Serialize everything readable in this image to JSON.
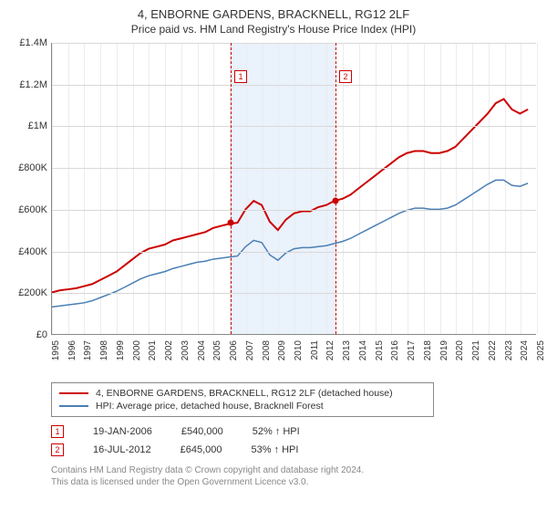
{
  "title": "4, ENBORNE GARDENS, BRACKNELL, RG12 2LF",
  "subtitle": "Price paid vs. HM Land Registry's House Price Index (HPI)",
  "chart": {
    "type": "line",
    "background_color": "#ffffff",
    "grid_color": "#d8d8d8",
    "grid_v_color": "#ececec",
    "shaded_color": "#eaf2fb",
    "ylim": [
      0,
      1400000
    ],
    "ytick_step": 200000,
    "y_ticks": [
      "£0",
      "£200K",
      "£400K",
      "£600K",
      "£800K",
      "£1M",
      "£1.2M",
      "£1.4M"
    ],
    "x_years": [
      1995,
      1996,
      1997,
      1998,
      1999,
      2000,
      2001,
      2002,
      2003,
      2004,
      2005,
      2006,
      2007,
      2008,
      2009,
      2010,
      2011,
      2012,
      2013,
      2014,
      2015,
      2016,
      2017,
      2018,
      2019,
      2020,
      2021,
      2022,
      2023,
      2024,
      2025
    ],
    "xlim": [
      1995,
      2025
    ],
    "series": [
      {
        "name": "price_paid",
        "color": "#cc0000",
        "width": 2,
        "points": [
          [
            1995,
            200000
          ],
          [
            1995.5,
            210000
          ],
          [
            1996,
            215000
          ],
          [
            1996.5,
            220000
          ],
          [
            1997,
            230000
          ],
          [
            1997.5,
            240000
          ],
          [
            1998,
            260000
          ],
          [
            1998.5,
            280000
          ],
          [
            1999,
            300000
          ],
          [
            1999.5,
            330000
          ],
          [
            2000,
            360000
          ],
          [
            2000.5,
            390000
          ],
          [
            2001,
            410000
          ],
          [
            2001.5,
            420000
          ],
          [
            2002,
            430000
          ],
          [
            2002.5,
            450000
          ],
          [
            2003,
            460000
          ],
          [
            2003.5,
            470000
          ],
          [
            2004,
            480000
          ],
          [
            2004.5,
            490000
          ],
          [
            2005,
            510000
          ],
          [
            2005.5,
            520000
          ],
          [
            2006,
            530000
          ],
          [
            2006.5,
            535000
          ],
          [
            2007,
            600000
          ],
          [
            2007.5,
            640000
          ],
          [
            2008,
            620000
          ],
          [
            2008.5,
            540000
          ],
          [
            2009,
            500000
          ],
          [
            2009.5,
            550000
          ],
          [
            2010,
            580000
          ],
          [
            2010.5,
            590000
          ],
          [
            2011,
            590000
          ],
          [
            2011.5,
            610000
          ],
          [
            2012,
            620000
          ],
          [
            2012.5,
            640000
          ],
          [
            2013,
            650000
          ],
          [
            2013.5,
            670000
          ],
          [
            2014,
            700000
          ],
          [
            2014.5,
            730000
          ],
          [
            2015,
            760000
          ],
          [
            2015.5,
            790000
          ],
          [
            2016,
            820000
          ],
          [
            2016.5,
            850000
          ],
          [
            2017,
            870000
          ],
          [
            2017.5,
            880000
          ],
          [
            2018,
            880000
          ],
          [
            2018.5,
            870000
          ],
          [
            2019,
            870000
          ],
          [
            2019.5,
            880000
          ],
          [
            2020,
            900000
          ],
          [
            2020.5,
            940000
          ],
          [
            2021,
            980000
          ],
          [
            2021.5,
            1020000
          ],
          [
            2022,
            1060000
          ],
          [
            2022.5,
            1110000
          ],
          [
            2023,
            1130000
          ],
          [
            2023.5,
            1080000
          ],
          [
            2024,
            1060000
          ],
          [
            2024.5,
            1080000
          ]
        ]
      },
      {
        "name": "hpi",
        "color": "#4a7fb5",
        "width": 1.5,
        "points": [
          [
            1995,
            130000
          ],
          [
            1995.5,
            135000
          ],
          [
            1996,
            140000
          ],
          [
            1996.5,
            145000
          ],
          [
            1997,
            150000
          ],
          [
            1997.5,
            160000
          ],
          [
            1998,
            175000
          ],
          [
            1998.5,
            190000
          ],
          [
            1999,
            205000
          ],
          [
            1999.5,
            225000
          ],
          [
            2000,
            245000
          ],
          [
            2000.5,
            265000
          ],
          [
            2001,
            280000
          ],
          [
            2001.5,
            290000
          ],
          [
            2002,
            300000
          ],
          [
            2002.5,
            315000
          ],
          [
            2003,
            325000
          ],
          [
            2003.5,
            335000
          ],
          [
            2004,
            345000
          ],
          [
            2004.5,
            350000
          ],
          [
            2005,
            360000
          ],
          [
            2005.5,
            365000
          ],
          [
            2006,
            370000
          ],
          [
            2006.5,
            375000
          ],
          [
            2007,
            420000
          ],
          [
            2007.5,
            450000
          ],
          [
            2008,
            440000
          ],
          [
            2008.5,
            380000
          ],
          [
            2009,
            355000
          ],
          [
            2009.5,
            390000
          ],
          [
            2010,
            410000
          ],
          [
            2010.5,
            415000
          ],
          [
            2011,
            415000
          ],
          [
            2011.5,
            420000
          ],
          [
            2012,
            425000
          ],
          [
            2012.5,
            435000
          ],
          [
            2013,
            445000
          ],
          [
            2013.5,
            460000
          ],
          [
            2014,
            480000
          ],
          [
            2014.5,
            500000
          ],
          [
            2015,
            520000
          ],
          [
            2015.5,
            540000
          ],
          [
            2016,
            560000
          ],
          [
            2016.5,
            580000
          ],
          [
            2017,
            595000
          ],
          [
            2017.5,
            605000
          ],
          [
            2018,
            605000
          ],
          [
            2018.5,
            600000
          ],
          [
            2019,
            600000
          ],
          [
            2019.5,
            605000
          ],
          [
            2020,
            620000
          ],
          [
            2020.5,
            645000
          ],
          [
            2021,
            670000
          ],
          [
            2021.5,
            695000
          ],
          [
            2022,
            720000
          ],
          [
            2022.5,
            740000
          ],
          [
            2023,
            740000
          ],
          [
            2023.5,
            715000
          ],
          [
            2024,
            710000
          ],
          [
            2024.5,
            725000
          ]
        ]
      }
    ],
    "markers": [
      {
        "label": "1",
        "year": 2006.05,
        "value": 540000
      },
      {
        "label": "2",
        "year": 2012.54,
        "value": 645000
      }
    ]
  },
  "legend": {
    "items": [
      {
        "color": "#cc0000",
        "label": "4, ENBORNE GARDENS, BRACKNELL, RG12 2LF (detached house)"
      },
      {
        "color": "#4a7fb5",
        "label": "HPI: Average price, detached house, Bracknell Forest"
      }
    ]
  },
  "transactions": [
    {
      "label": "1",
      "date": "19-JAN-2006",
      "price": "£540,000",
      "pct": "52% ↑ HPI"
    },
    {
      "label": "2",
      "date": "16-JUL-2012",
      "price": "£645,000",
      "pct": "53% ↑ HPI"
    }
  ],
  "footer": {
    "line1": "Contains HM Land Registry data © Crown copyright and database right 2024.",
    "line2": "This data is licensed under the Open Government Licence v3.0."
  }
}
